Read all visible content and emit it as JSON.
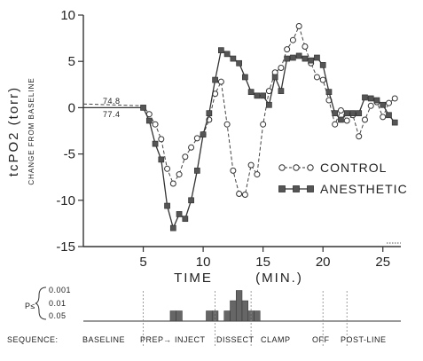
{
  "chart_data": [
    {
      "type": "line",
      "ylabel": "tcPO2 (torr)",
      "ylabel_sub": "CHANGE FROM BASELINE",
      "xlabel_parts": [
        "TIME",
        "(MIN.)"
      ],
      "xlim": [
        0,
        26.5
      ],
      "ylim": [
        -15,
        10
      ],
      "xticks": [
        5,
        10,
        15,
        20,
        25
      ],
      "yticks": [
        10,
        5,
        0,
        -5,
        -10,
        -15
      ],
      "baseline_annotations": [
        {
          "text": "74.8",
          "series": "CONTROL"
        },
        {
          "text": "77.4",
          "series": "ANESTHETIC"
        }
      ],
      "legend": {
        "position": "lower-right",
        "entries": [
          "CONTROL",
          "ANESTHETIC"
        ]
      },
      "series": [
        {
          "name": "CONTROL",
          "marker": "open-circle",
          "linestyle": "dashed",
          "points": [
            [
              0,
              0.4
            ],
            [
              5,
              0.2
            ],
            [
              5.5,
              -0.7
            ],
            [
              6,
              -1.8
            ],
            [
              6.5,
              -3.4
            ],
            [
              7,
              -6.6
            ],
            [
              7.5,
              -8.2
            ],
            [
              8,
              -7.2
            ],
            [
              8.5,
              -5.3
            ],
            [
              9,
              -4.3
            ],
            [
              9.5,
              -3.3
            ],
            [
              10,
              -2.9
            ],
            [
              10.5,
              -1.3
            ],
            [
              11,
              1.5
            ],
            [
              11.5,
              2.8
            ],
            [
              12,
              -1.8
            ],
            [
              12.5,
              -6.8
            ],
            [
              13,
              -9.3
            ],
            [
              13.5,
              -9.4
            ],
            [
              14,
              -6.2
            ],
            [
              14.5,
              -7.2
            ],
            [
              15,
              -1.8
            ],
            [
              15.5,
              1.8
            ],
            [
              16,
              3.8
            ],
            [
              16.5,
              4.3
            ],
            [
              17,
              6.3
            ],
            [
              17.5,
              7.3
            ],
            [
              18,
              8.8
            ],
            [
              18.5,
              6.6
            ],
            [
              19,
              4.8
            ],
            [
              19.5,
              3.3
            ],
            [
              20,
              3.0
            ],
            [
              20.5,
              0.8
            ],
            [
              21,
              -1.8
            ],
            [
              21.5,
              -0.3
            ],
            [
              22,
              -1.4
            ],
            [
              22.5,
              -0.8
            ],
            [
              23,
              -3.1
            ],
            [
              23.5,
              -1.3
            ],
            [
              24,
              0.2
            ],
            [
              24.5,
              0.6
            ],
            [
              25,
              -1.0
            ],
            [
              25.5,
              0.5
            ],
            [
              26,
              1.0
            ]
          ]
        },
        {
          "name": "ANESTHETIC",
          "marker": "filled-square",
          "linestyle": "solid",
          "points": [
            [
              0,
              0.0
            ],
            [
              5,
              0.0
            ],
            [
              5.5,
              -1.4
            ],
            [
              6,
              -3.9
            ],
            [
              6.5,
              -5.6
            ],
            [
              7,
              -10.6
            ],
            [
              7.5,
              -13.0
            ],
            [
              8,
              -11.5
            ],
            [
              8.5,
              -12.0
            ],
            [
              9,
              -10.0
            ],
            [
              9.5,
              -6.8
            ],
            [
              10,
              -2.9
            ],
            [
              10.5,
              -0.6
            ],
            [
              11,
              3.0
            ],
            [
              11.5,
              6.2
            ],
            [
              12,
              5.8
            ],
            [
              12.5,
              5.3
            ],
            [
              13,
              4.8
            ],
            [
              13.5,
              3.3
            ],
            [
              14,
              1.7
            ],
            [
              14.5,
              1.3
            ],
            [
              15,
              1.3
            ],
            [
              15.5,
              0.3
            ],
            [
              16,
              3.3
            ],
            [
              16.5,
              1.8
            ],
            [
              17,
              5.3
            ],
            [
              17.5,
              5.4
            ],
            [
              18,
              5.6
            ],
            [
              18.5,
              5.3
            ],
            [
              19,
              5.1
            ],
            [
              19.5,
              5.4
            ],
            [
              20,
              4.6
            ],
            [
              20.5,
              1.7
            ],
            [
              21,
              -0.6
            ],
            [
              21.5,
              -1.3
            ],
            [
              22,
              -0.6
            ],
            [
              22.5,
              -0.6
            ],
            [
              23,
              -0.6
            ],
            [
              23.5,
              1.1
            ],
            [
              24,
              1.0
            ],
            [
              24.5,
              0.8
            ],
            [
              25,
              0.3
            ],
            [
              25.5,
              -0.8
            ],
            [
              26,
              -1.6
            ]
          ]
        }
      ]
    },
    {
      "type": "bar",
      "ylabel": "P≤",
      "yticks": [
        "0.001",
        "0.01",
        "0.05"
      ],
      "bars": [
        {
          "x": 7.5,
          "level": 1
        },
        {
          "x": 8,
          "level": 1
        },
        {
          "x": 10.5,
          "level": 1
        },
        {
          "x": 11,
          "level": 1
        },
        {
          "x": 12,
          "level": 1
        },
        {
          "x": 12.5,
          "level": 2
        },
        {
          "x": 13,
          "level": 3
        },
        {
          "x": 13.5,
          "level": 2
        },
        {
          "x": 14,
          "level": 1
        },
        {
          "x": 14.5,
          "level": 1
        }
      ]
    }
  ],
  "sequence": {
    "label": "SEQUENCE:",
    "phases": [
      {
        "text": "BASELINE",
        "start": 0,
        "end": 5
      },
      {
        "text": "PREP",
        "start": 5,
        "end": 11
      },
      {
        "text": "INJECT",
        "start": 5,
        "end": 11
      },
      {
        "text": "DISSECT",
        "start": 11,
        "end": 14
      },
      {
        "text": "CLAMP",
        "start": 14,
        "end": 20
      },
      {
        "text": "OFF",
        "start": 20,
        "end": 22
      },
      {
        "text": "POST-LINE",
        "start": 22,
        "end": 26.5
      }
    ]
  }
}
